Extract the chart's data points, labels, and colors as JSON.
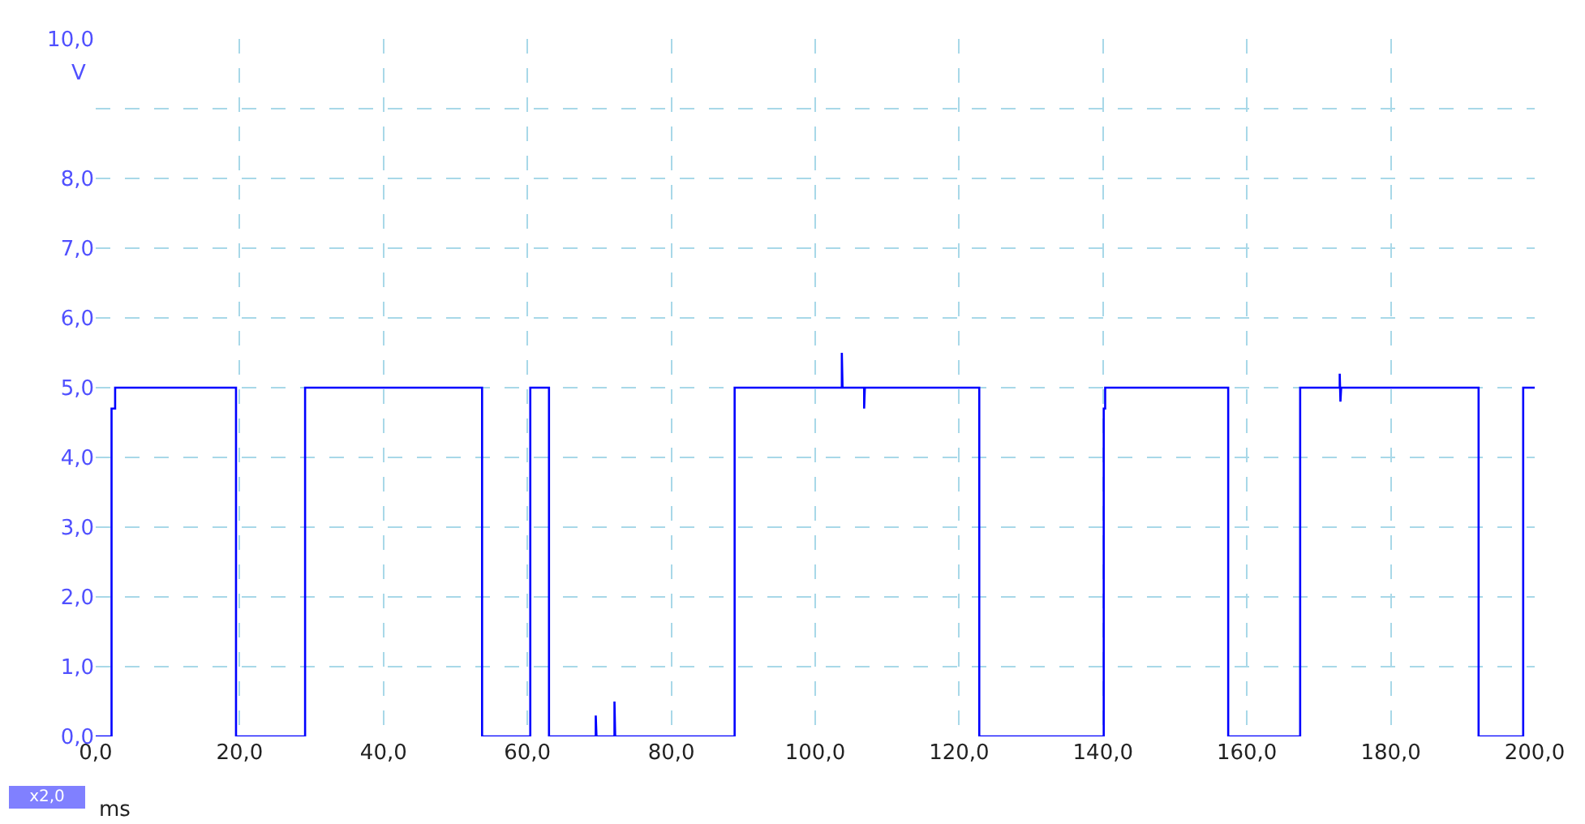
{
  "chart_data": {
    "type": "line",
    "xlabel": "ms",
    "ylabel": "V",
    "xlim": [
      0,
      200
    ],
    "xticks": [
      {
        "value": 0,
        "label": "0,0"
      },
      {
        "value": 20,
        "label": "20,0"
      },
      {
        "value": 40,
        "label": "40,0"
      },
      {
        "value": 60,
        "label": "60,0"
      },
      {
        "value": 80,
        "label": "80,0"
      },
      {
        "value": 100,
        "label": "100,0"
      },
      {
        "value": 120,
        "label": "120,0"
      },
      {
        "value": 140,
        "label": "140,0"
      },
      {
        "value": 160,
        "label": "160,0"
      },
      {
        "value": 180,
        "label": "180,0"
      },
      {
        "value": 200,
        "label": "200,0"
      }
    ],
    "ylim": [
      0,
      10
    ],
    "yticks": [
      {
        "value": 0,
        "label": "0,0"
      },
      {
        "value": 1,
        "label": "1,0"
      },
      {
        "value": 2,
        "label": "2,0"
      },
      {
        "value": 3,
        "label": "3,0"
      },
      {
        "value": 4,
        "label": "4,0"
      },
      {
        "value": 5,
        "label": "5,0"
      },
      {
        "value": 6,
        "label": "6,0"
      },
      {
        "value": 7,
        "label": "7,0"
      },
      {
        "value": 8,
        "label": "8,0"
      },
      {
        "value": 9,
        "label": null
      },
      {
        "value": 10,
        "label": "10,0"
      }
    ],
    "grid": true,
    "marker": "none",
    "line_style": "solid",
    "annotations": [
      "x2,0"
    ],
    "series": [
      {
        "color": "#0000ff",
        "x": [
          0,
          2.2,
          2.2,
          2.7,
          2.7,
          19.5,
          19.5,
          29.1,
          29.1,
          53.7,
          53.7,
          60.4,
          60.4,
          63.0,
          63.0,
          69.5,
          69.5,
          69.6,
          72.1,
          72.1,
          72.2,
          88.8,
          88.8,
          103.7,
          103.7,
          103.8,
          106.8,
          106.8,
          106.9,
          122.8,
          122.8,
          140.1,
          140.1,
          140.3,
          140.3,
          157.4,
          157.4,
          167.4,
          167.4,
          172.9,
          172.9,
          173.0,
          173.1,
          192.2,
          192.2,
          198.4,
          198.4,
          200
        ],
        "values": [
          0,
          0,
          4.7,
          4.7,
          5.0,
          5.0,
          0,
          0,
          5.0,
          5.0,
          0,
          0,
          5.0,
          5.0,
          0,
          0,
          0.3,
          0,
          0,
          0.5,
          0,
          0,
          5.0,
          5.0,
          5.5,
          5.0,
          5.0,
          4.7,
          5.0,
          5.0,
          0,
          0,
          4.7,
          4.7,
          5.0,
          5.0,
          0,
          0,
          5.0,
          5.0,
          5.2,
          4.8,
          5.0,
          5.0,
          0,
          0,
          5.0,
          5.0
        ]
      }
    ]
  }
}
